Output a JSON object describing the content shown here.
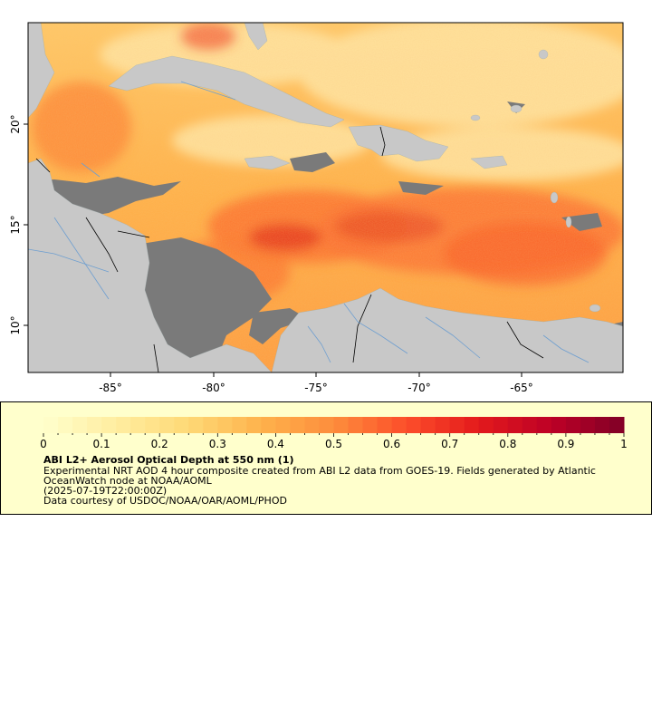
{
  "map": {
    "region": "Caribbean Sea",
    "colors": {
      "land": "#c8c8c8",
      "no_data": "#7a7a7a",
      "rivers": "#6f9fd0",
      "borders": "#000000",
      "frame": "#000000"
    },
    "x_ticks": [
      "-85°",
      "-80°",
      "-75°",
      "-70°",
      "-65°"
    ],
    "y_ticks": [
      "20°",
      "15°",
      "10°"
    ],
    "lon_range": [
      -88.8,
      -59.7
    ],
    "lat_range": [
      8.0,
      25.3
    ]
  },
  "colorbar": {
    "min": 0,
    "max": 1,
    "step": 0.025,
    "colormap": "YlOrRd",
    "tick_labels": [
      "0",
      "0.1",
      "0.2",
      "0.3",
      "0.4",
      "0.5",
      "0.6",
      "0.7",
      "0.8",
      "0.9",
      "1"
    ]
  },
  "legend": {
    "title": "ABI L2+ Aerosol Optical Depth at 550 nm (1)",
    "description_line1": "Experimental NRT AOD 4 hour composite created from ABI L2 data from GOES-19. Fields generated by Atlantic",
    "description_line2": "OceanWatch node at NOAA/AOML",
    "description_line3": "(2025-07-19T22:00:00Z)",
    "credit": "Data courtesy of USDOC/NOAA/OAR/AOML/PHOD",
    "background": "#ffffcc"
  }
}
